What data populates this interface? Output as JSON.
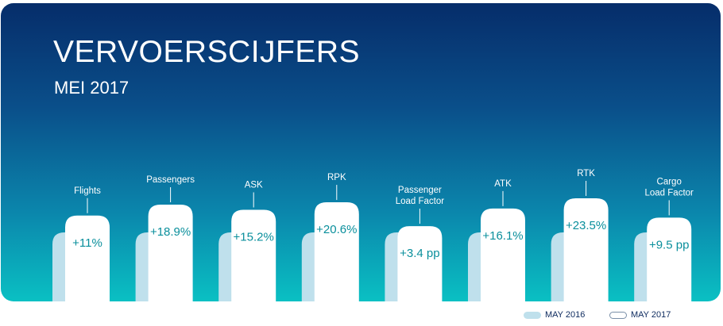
{
  "header": {
    "title": "VERVOERSCIJFERS",
    "subtitle": "MEI 2017"
  },
  "legend": {
    "may_2016": "MAY 2016",
    "may_2017": "MAY 2017"
  },
  "colors": {
    "panel_top": "#062d6a",
    "panel_bottom": "#0ac0c3",
    "bar_2016": "#bfe0ec",
    "bar_2017": "#ffffff",
    "value_text": "#0a8f9c"
  },
  "chart_data": {
    "type": "bar",
    "title": "VERVOERSCIJFERS",
    "subtitle": "MEI 2017",
    "series": [
      {
        "name": "MAY 2016"
      },
      {
        "name": "MAY 2017"
      }
    ],
    "categories": [
      {
        "label": "Flights",
        "change": "+11%",
        "growth": 11
      },
      {
        "label": "Passengers",
        "change": "+18.9%",
        "growth": 18.9
      },
      {
        "label": "ASK",
        "change": "+15.2%",
        "growth": 15.2
      },
      {
        "label": "RPK",
        "change": "+20.6%",
        "growth": 20.6
      },
      {
        "label": "Passenger\nLoad Factor",
        "change": "+3.4 pp",
        "growth": 3.4
      },
      {
        "label": "ATK",
        "change": "+16.1%",
        "growth": 16.1
      },
      {
        "label": "RTK",
        "change": "+23.5%",
        "growth": 23.5
      },
      {
        "label": "Cargo\nLoad Factor",
        "change": "+9.5 pp",
        "growth": 9.5
      }
    ]
  }
}
